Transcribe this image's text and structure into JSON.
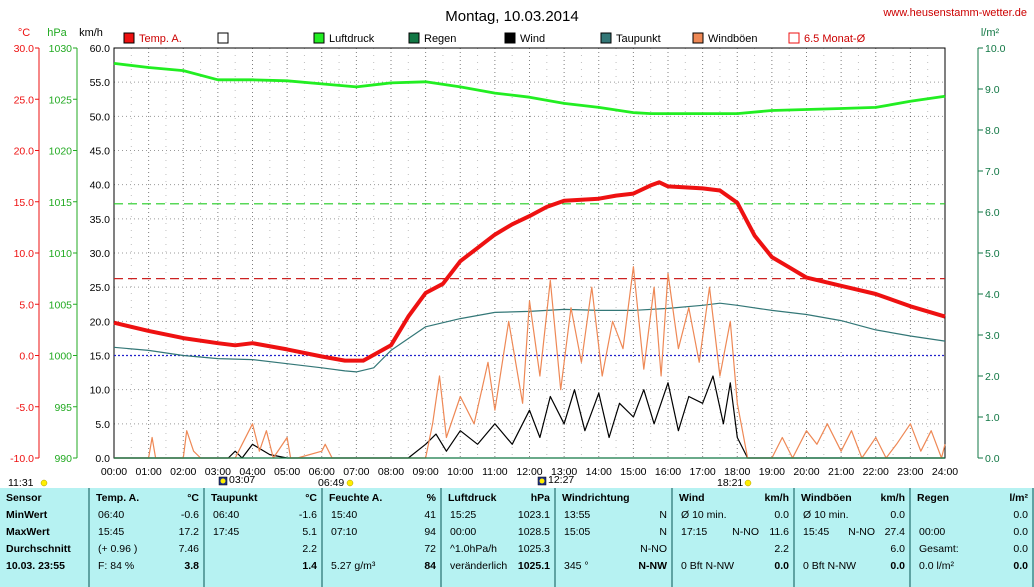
{
  "title": "Montag, 10.03.2014",
  "site": "www.heusenstamm-wetter.de",
  "colors": {
    "temp": "#ee1111",
    "pressure": "#22ee22",
    "rain": "#117744",
    "wind": "#000000",
    "dewpoint": "#337777",
    "gusts": "#ee8855",
    "avg": "#cc2222",
    "axis_left": "#ee1111",
    "axis_green": "#22aa22",
    "axis_right": "#117744"
  },
  "axis_units": {
    "temp": "°C",
    "pressure": "hPa",
    "wind": "km/h",
    "rain": "l/m²"
  },
  "legend": [
    {
      "label": "Temp. A.",
      "color": "#ee1111",
      "fill": true
    },
    {
      "label": "",
      "color": "#000000",
      "fill": false
    },
    {
      "label": "Luftdruck",
      "color": "#22ee22",
      "fill": true
    },
    {
      "label": "Regen",
      "color": "#117744",
      "fill": true
    },
    {
      "label": "Wind",
      "color": "#000000",
      "fill": true
    },
    {
      "label": "Taupunkt",
      "color": "#337777",
      "fill": true
    },
    {
      "label": "Windböen",
      "color": "#ee8855",
      "fill": true
    },
    {
      "label": "6.5 Monat-Ø",
      "color": "#ee1111",
      "fill": false
    }
  ],
  "time_markers": [
    {
      "label": "11:31",
      "marker": "sun"
    },
    {
      "label": "03:07",
      "marker": "moon"
    },
    {
      "label": "06:49",
      "marker": "sun"
    },
    {
      "label": "12:27",
      "marker": "moon"
    },
    {
      "label": "18:21",
      "marker": "sun"
    }
  ],
  "chart_data": {
    "type": "line",
    "title": "Montag, 10.03.2014",
    "x_ticks": [
      "00:00",
      "01:00",
      "02:00",
      "03:00",
      "04:00",
      "05:00",
      "06:00",
      "07:00",
      "08:00",
      "09:00",
      "10:00",
      "11:00",
      "12:00",
      "13:00",
      "14:00",
      "15:00",
      "16:00",
      "17:00",
      "18:00",
      "19:00",
      "20:00",
      "21:00",
      "22:00",
      "23:00",
      "24:00"
    ],
    "axes": {
      "temp": {
        "unit": "°C",
        "range": [
          -10,
          30
        ],
        "ticks": [
          "-10.0",
          "-5.0",
          "0.0",
          "5.0",
          "10.0",
          "15.0",
          "20.0",
          "25.0",
          "30.0"
        ]
      },
      "pressure": {
        "unit": "hPa",
        "range": [
          990,
          1030
        ],
        "ticks": [
          "990",
          "995",
          "1000",
          "1005",
          "1010",
          "1015",
          "1020",
          "1025",
          "1030"
        ]
      },
      "wind": {
        "unit": "km/h",
        "range": [
          0,
          60
        ],
        "ticks": [
          "0.0",
          "5.0",
          "10.0",
          "15.0",
          "20.0",
          "25.0",
          "30.0",
          "35.0",
          "40.0",
          "45.0",
          "50.0",
          "55.0",
          "60.0"
        ]
      },
      "rain": {
        "unit": "l/m²",
        "range": [
          0,
          10
        ],
        "ticks": [
          "0.0",
          "1.0",
          "2.0",
          "3.0",
          "4.0",
          "5.0",
          "6.0",
          "7.0",
          "8.0",
          "9.0",
          "10.0"
        ]
      }
    },
    "reference_lines": [
      {
        "name": "6.5 Monat-Ø Temp",
        "axis": "temp",
        "value": 7.5,
        "color": "#cc2222"
      },
      {
        "name": "6.5 Monat-Ø Luftdruck",
        "axis": "pressure",
        "value": 1014.8,
        "color": "#22cc22"
      },
      {
        "name": "6.5 Monat-Ø Taupunkt",
        "axis": "temp",
        "value": 0.0,
        "color": "#2222cc"
      }
    ],
    "series": [
      {
        "name": "Temp. A.",
        "axis": "temp",
        "color": "#ee1111",
        "x": [
          0,
          1,
          2,
          3,
          3.5,
          4,
          5,
          6,
          6.67,
          7.2,
          8,
          8.5,
          9,
          9.5,
          10,
          10.5,
          11,
          11.5,
          12,
          12.5,
          13,
          13.5,
          14,
          14.5,
          15,
          15.5,
          15.75,
          16,
          16.5,
          17,
          17.5,
          18,
          18.5,
          19,
          19.5,
          20,
          21,
          22,
          22.5,
          23,
          23.5,
          24
        ],
        "y": [
          3.2,
          2.4,
          1.7,
          1.2,
          1.0,
          1.2,
          0.6,
          -0.1,
          -0.5,
          -0.5,
          1.0,
          3.8,
          6.1,
          7.0,
          9.2,
          10.5,
          11.8,
          12.8,
          13.6,
          14.5,
          15.1,
          15.2,
          15.3,
          15.6,
          15.8,
          16.6,
          16.9,
          16.5,
          16.4,
          16.3,
          16.1,
          14.9,
          11.7,
          9.6,
          8.6,
          7.6,
          6.8,
          6.0,
          5.4,
          4.8,
          4.3,
          3.8
        ]
      },
      {
        "name": "Luftdruck",
        "axis": "pressure",
        "color": "#22ee22",
        "x": [
          0,
          1,
          2,
          3,
          4,
          5,
          6,
          7,
          8,
          9,
          10,
          11,
          12,
          13,
          14,
          15,
          15.5,
          16,
          17,
          18,
          19,
          20,
          21,
          22,
          23,
          24
        ],
        "y": [
          1028.5,
          1028.1,
          1027.8,
          1026.9,
          1026.9,
          1026.8,
          1026.5,
          1026.2,
          1026.6,
          1026.7,
          1026.2,
          1025.6,
          1025.2,
          1024.6,
          1024.2,
          1023.7,
          1023.6,
          1023.6,
          1023.6,
          1023.6,
          1023.9,
          1024.0,
          1024.1,
          1024.2,
          1024.8,
          1025.3
        ]
      },
      {
        "name": "Taupunkt",
        "axis": "temp",
        "color": "#337777",
        "x": [
          0,
          1,
          2,
          3,
          4,
          5,
          6,
          6.67,
          7,
          7.5,
          8,
          9,
          10,
          11,
          12,
          13,
          14,
          15,
          16,
          17,
          17.5,
          18,
          19,
          20,
          21,
          22,
          23,
          24
        ],
        "y": [
          0.8,
          0.5,
          0.0,
          -0.3,
          -0.4,
          -0.8,
          -1.2,
          -1.5,
          -1.6,
          -1.2,
          0.5,
          2.8,
          3.6,
          4.2,
          4.3,
          4.5,
          4.4,
          4.4,
          4.6,
          4.9,
          5.1,
          4.9,
          4.4,
          4.0,
          3.4,
          2.5,
          1.9,
          1.4
        ]
      },
      {
        "name": "Wind",
        "axis": "wind",
        "color": "#000000",
        "x": [
          0,
          3.3,
          3.5,
          3.7,
          4,
          4.5,
          5,
          8.5,
          9,
          9.3,
          9.6,
          10,
          10.5,
          11,
          11.5,
          12,
          12.3,
          12.6,
          13,
          13.3,
          13.6,
          14,
          14.3,
          14.6,
          15,
          15.3,
          15.6,
          16,
          16.3,
          16.6,
          17,
          17.3,
          17.6,
          17.8,
          18,
          18.3,
          19,
          20,
          21,
          22,
          23,
          24
        ],
        "y": [
          0,
          0,
          1,
          0,
          2,
          0.5,
          0,
          0,
          2,
          3.5,
          1,
          4,
          2,
          5,
          2,
          7,
          3,
          9,
          5,
          10,
          4,
          9.5,
          3,
          8,
          6,
          10,
          5,
          11,
          4,
          9,
          8,
          12,
          5,
          11,
          3,
          0,
          0,
          0,
          0,
          0,
          0,
          0
        ]
      },
      {
        "name": "Windböen",
        "axis": "wind",
        "color": "#ee8855",
        "x": [
          0,
          1,
          1.1,
          1.2,
          1.4,
          2,
          2.1,
          2.3,
          2.5,
          3,
          3.5,
          3.7,
          4,
          4.2,
          4.4,
          4.6,
          5,
          5.1,
          5.3,
          6,
          6.1,
          6.3,
          7,
          7.5,
          8,
          9,
          9.2,
          9.4,
          9.6,
          10,
          10.4,
          10.8,
          11,
          11.4,
          11.8,
          12,
          12.3,
          12.6,
          12.9,
          13.2,
          13.5,
          13.8,
          14.1,
          14.4,
          14.7,
          15,
          15.3,
          15.6,
          15.8,
          16,
          16.3,
          16.6,
          16.9,
          17.2,
          17.5,
          17.8,
          18,
          18.3,
          19,
          19.3,
          19.6,
          20,
          20.3,
          20.6,
          21,
          21.3,
          21.6,
          22,
          22.3,
          22.6,
          23,
          23.3,
          23.6,
          23.9,
          24
        ],
        "y": [
          0,
          0,
          3,
          0,
          0,
          0,
          4,
          1,
          0,
          0,
          0,
          2,
          5,
          1,
          4,
          0,
          3,
          0,
          0,
          1,
          2,
          0,
          0,
          0,
          0,
          0,
          5,
          12,
          3,
          9,
          5,
          14,
          7,
          20,
          8,
          23,
          12,
          26,
          10,
          22,
          14,
          25,
          12,
          20,
          16,
          28,
          13,
          25,
          12,
          27,
          16,
          22,
          14,
          25,
          12,
          20,
          8,
          0,
          0,
          3,
          0,
          4,
          2,
          5,
          1,
          4,
          0,
          3,
          0,
          2,
          5,
          1,
          4,
          0,
          2
        ]
      },
      {
        "name": "Regen",
        "axis": "rain",
        "color": "#117744",
        "x": [
          0,
          24
        ],
        "y": [
          0,
          0
        ]
      }
    ]
  },
  "table": {
    "headers": [
      {
        "label": "Sensor",
        "unit": ""
      },
      {
        "label": "Temp. A.",
        "unit": "°C"
      },
      {
        "label": "Taupunkt",
        "unit": "°C"
      },
      {
        "label": "Feuchte A.",
        "unit": "%"
      },
      {
        "label": "Luftdruck",
        "unit": "hPa"
      },
      {
        "label": "Windrichtung",
        "unit": ""
      },
      {
        "label": "Wind",
        "unit": "km/h"
      },
      {
        "label": "Windböen",
        "unit": "km/h"
      },
      {
        "label": "Regen",
        "unit": "l/m²"
      }
    ],
    "row_labels": [
      "MinWert",
      "MaxWert",
      "Durchschnitt",
      "10.03. 23:55"
    ],
    "temp": [
      [
        "06:40",
        "-0.6"
      ],
      [
        "15:45",
        "17.2"
      ],
      [
        "(+ 0.96 )",
        "7.46"
      ],
      [
        "F: 84 %",
        "3.8"
      ]
    ],
    "dew": [
      [
        "06:40",
        "-1.6"
      ],
      [
        "17:45",
        "5.1"
      ],
      [
        "",
        "2.2"
      ],
      [
        "",
        "1.4"
      ]
    ],
    "hum": [
      [
        "15:40",
        "41"
      ],
      [
        "07:10",
        "94"
      ],
      [
        "",
        "72"
      ],
      [
        "5.27 g/m³",
        "84"
      ]
    ],
    "press": [
      [
        "15:25",
        "1023.1"
      ],
      [
        "00:00",
        "1028.5"
      ],
      [
        "^1.0hPa/h",
        "1025.3"
      ],
      [
        "veränderlich",
        "1025.1"
      ]
    ],
    "dir": [
      [
        "13:55",
        "N"
      ],
      [
        "15:05",
        "N"
      ],
      [
        "",
        "N-NO"
      ],
      [
        "345 °",
        "N-NW"
      ]
    ],
    "wind": [
      [
        "Ø 10 min.",
        "",
        "0.0"
      ],
      [
        "17:15",
        "N-NO",
        "11.6"
      ],
      [
        "",
        "",
        "2.2"
      ],
      [
        "0 Bft N-NW",
        "",
        "0.0"
      ]
    ],
    "gust": [
      [
        "Ø 10 min.",
        "",
        "0.0"
      ],
      [
        "15:45",
        "N-NO",
        "27.4"
      ],
      [
        "",
        "",
        "6.0"
      ],
      [
        "0 Bft N-NW",
        "",
        "0.0"
      ]
    ],
    "rain": [
      [
        "",
        "0.0"
      ],
      [
        "00:00",
        "0.0"
      ],
      [
        "Gesamt:",
        "0.0"
      ],
      [
        "0.0 l/m²",
        "0.0"
      ]
    ]
  }
}
